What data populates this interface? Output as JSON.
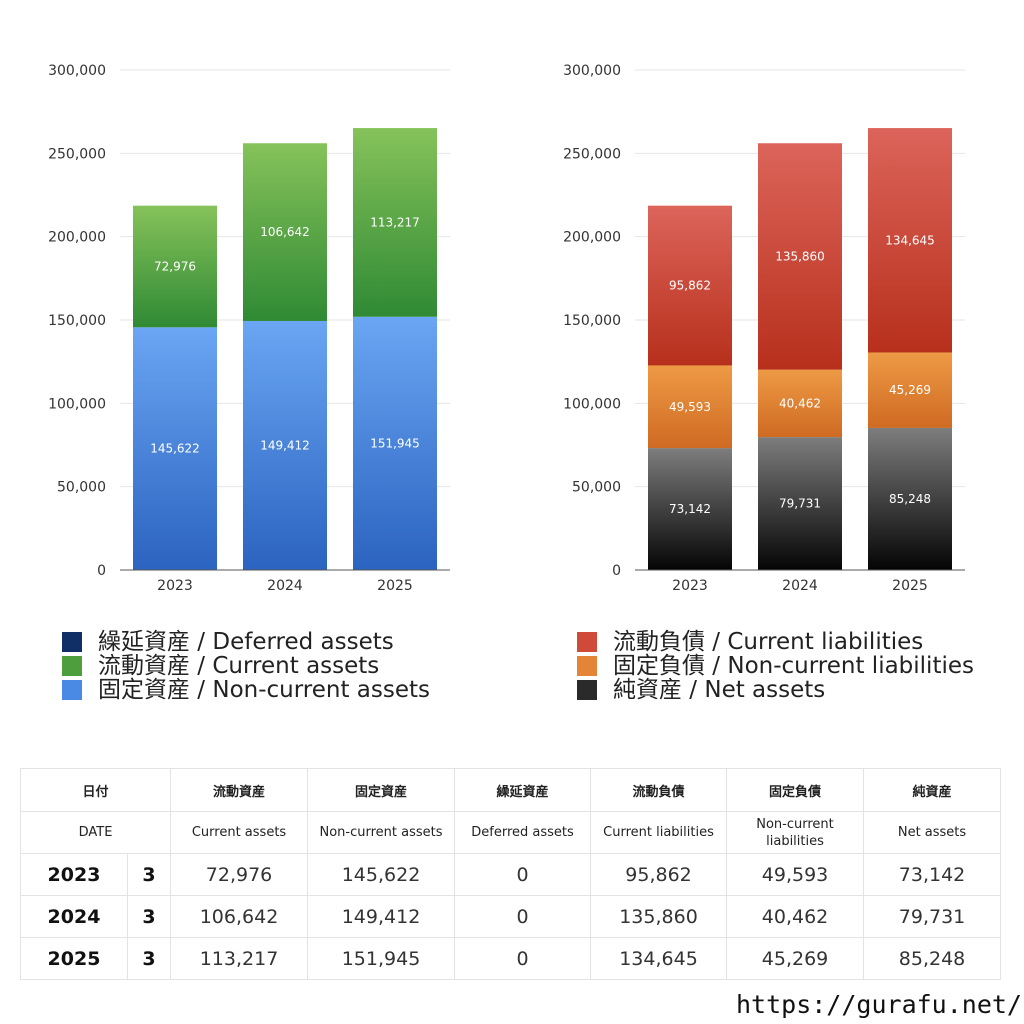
{
  "chart_data": [
    {
      "type": "bar",
      "stacked": true,
      "categories": [
        "2023",
        "2024",
        "2025"
      ],
      "ylim": [
        0,
        300000
      ],
      "yticks": [
        "0",
        "50,000",
        "100,000",
        "150,000",
        "200,000",
        "250,000",
        "300,000"
      ],
      "grid": true,
      "legend_position": "bottom",
      "series": [
        {
          "name": "固定資産 / Non-current assets",
          "values": [
            145622,
            149412,
            151945
          ],
          "labels": [
            "145,622",
            "149,412",
            "151,945"
          ],
          "color_top": "#6aa6f3",
          "color_bottom": "#2b63c0"
        },
        {
          "name": "流動資産 / Current assets",
          "values": [
            72976,
            106642,
            113217
          ],
          "labels": [
            "72,976",
            "106,642",
            "113,217"
          ],
          "color_top": "#86c25a",
          "color_bottom": "#2f8a34"
        },
        {
          "name": "繰延資産 / Deferred assets",
          "values": [
            0,
            0,
            0
          ],
          "labels": [
            "",
            "",
            ""
          ],
          "color_top": "#1b3d78",
          "color_bottom": "#0d2452"
        }
      ]
    },
    {
      "type": "bar",
      "stacked": true,
      "categories": [
        "2023",
        "2024",
        "2025"
      ],
      "ylim": [
        0,
        300000
      ],
      "yticks": [
        "0",
        "50,000",
        "100,000",
        "150,000",
        "200,000",
        "250,000",
        "300,000"
      ],
      "grid": true,
      "legend_position": "bottom",
      "series": [
        {
          "name": "純資産 / Net assets",
          "values": [
            73142,
            79731,
            85248
          ],
          "labels": [
            "73,142",
            "79,731",
            "85,248"
          ],
          "color_top": "#7d7d7d",
          "color_bottom": "#050505"
        },
        {
          "name": "固定負債 / Non-current liabilities",
          "values": [
            49593,
            40462,
            45269
          ],
          "labels": [
            "49,593",
            "40,462",
            "45,269"
          ],
          "color_top": "#ee9a45",
          "color_bottom": "#cf6a22"
        },
        {
          "name": "流動負債 / Current liabilities",
          "values": [
            95862,
            135860,
            134645
          ],
          "labels": [
            "95,862",
            "135,860",
            "134,645"
          ],
          "color_top": "#dc645a",
          "color_bottom": "#b7301c"
        }
      ]
    }
  ],
  "legend_left": [
    {
      "label": "繰延資産 / Deferred assets",
      "color": "#0f2f66"
    },
    {
      "label": "流動資産 / Current assets",
      "color": "#4f9e3d"
    },
    {
      "label": "固定資産 / Non-current assets",
      "color": "#4a8ae4"
    }
  ],
  "legend_right": [
    {
      "label": "流動負債 / Current liabilities",
      "color": "#cf4a38"
    },
    {
      "label": "固定負債 / Non-current liabilities",
      "color": "#e48436"
    },
    {
      "label": "純資産 / Net assets",
      "color": "#2a2a2a"
    }
  ],
  "table": {
    "header_jp": [
      "日付",
      "流動資産",
      "固定資産",
      "繰延資産",
      "流動負債",
      "固定負債",
      "純資産"
    ],
    "header_en": [
      "DATE",
      "Current assets",
      "Non-current assets",
      "Deferred assets",
      "Current liabilities",
      "Non-current liabilities",
      "Net assets"
    ],
    "rows": [
      {
        "year": "2023",
        "month": "3",
        "values": [
          "72,976",
          "145,622",
          "0",
          "95,862",
          "49,593",
          "73,142"
        ]
      },
      {
        "year": "2024",
        "month": "3",
        "values": [
          "106,642",
          "149,412",
          "0",
          "135,860",
          "40,462",
          "79,731"
        ]
      },
      {
        "year": "2025",
        "month": "3",
        "values": [
          "113,217",
          "151,945",
          "0",
          "134,645",
          "45,269",
          "85,248"
        ]
      }
    ]
  },
  "site_url": "https://gurafu.net/"
}
